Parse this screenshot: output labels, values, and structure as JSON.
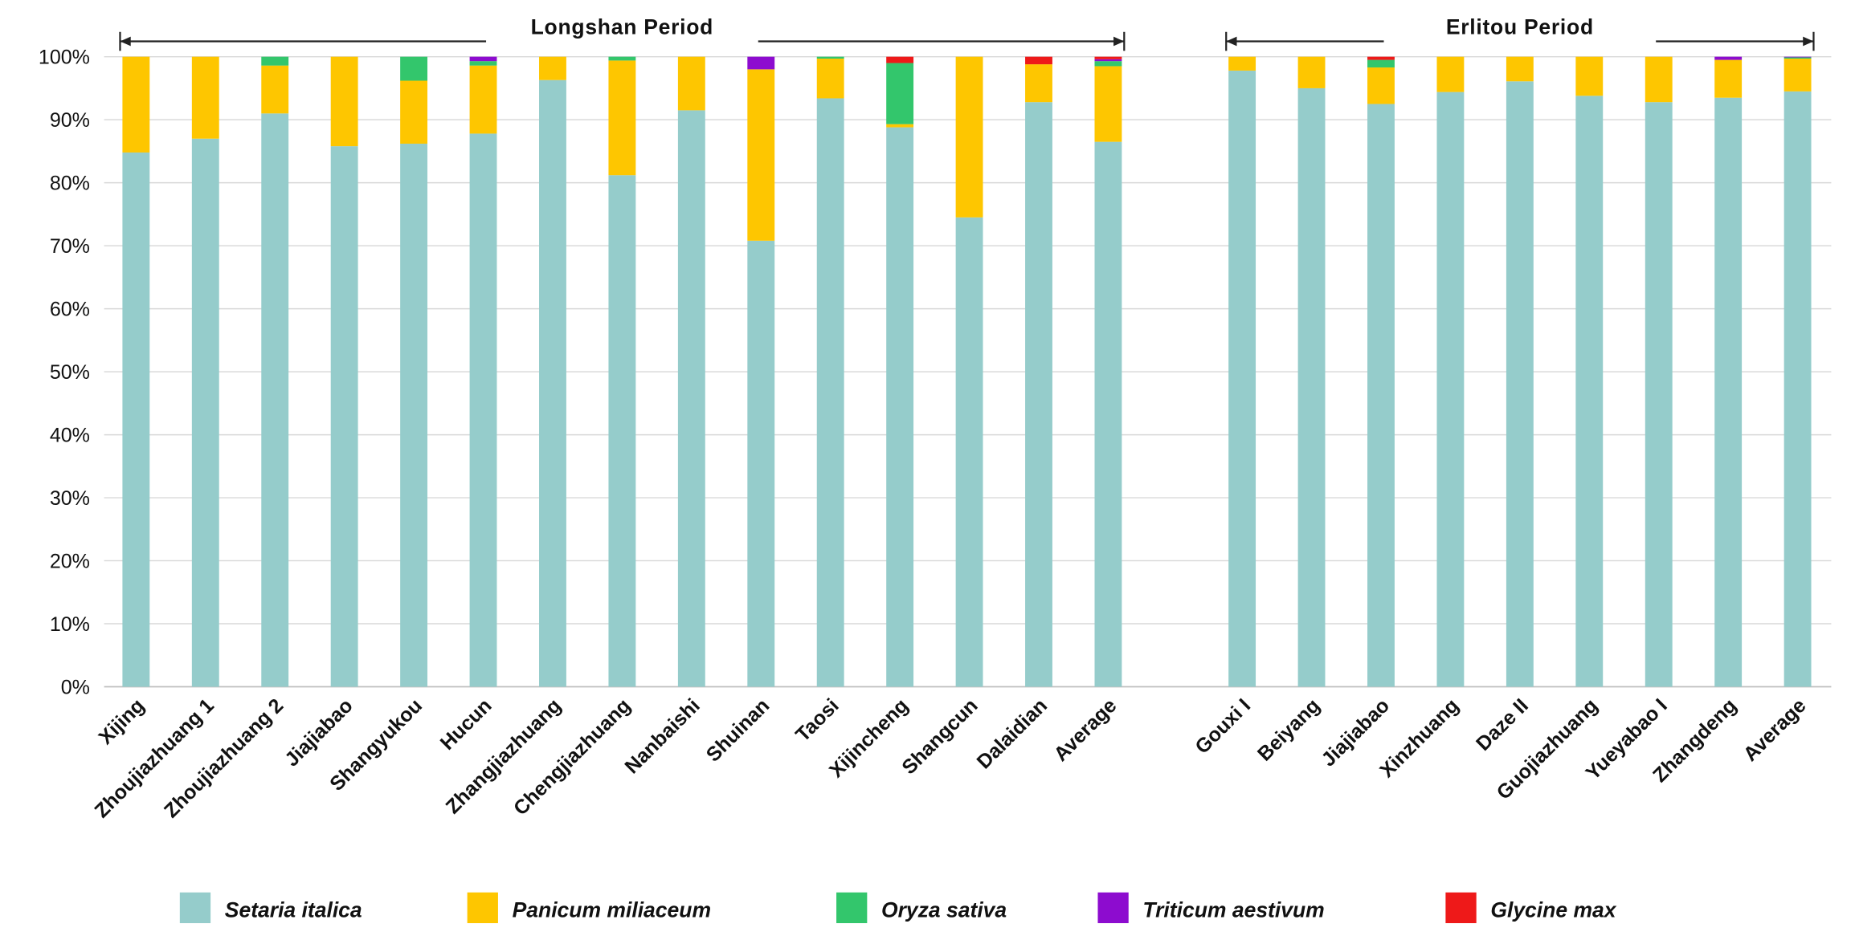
{
  "chart_data": {
    "type": "bar",
    "stacked": true,
    "title": "",
    "xlabel": "",
    "ylabel": "",
    "ylim": [
      0,
      100
    ],
    "y_ticks": [
      "0%",
      "10%",
      "20%",
      "30%",
      "40%",
      "50%",
      "60%",
      "70%",
      "80%",
      "90%",
      "100%"
    ],
    "grid": true,
    "legend_position": "bottom",
    "colors": {
      "setaria": "#95cccb",
      "panicum": "#fec600",
      "oryza": "#33c66c",
      "triticum": "#8d0ccf",
      "glycine": "#ee1919"
    },
    "legend": [
      {
        "key": "setaria",
        "label": "Setaria italica"
      },
      {
        "key": "panicum",
        "label": "Panicum miliaceum"
      },
      {
        "key": "oryza",
        "label": "Oryza sativa"
      },
      {
        "key": "triticum",
        "label": "Triticum aestivum"
      },
      {
        "key": "glycine",
        "label": "Glycine max"
      }
    ],
    "periods": [
      {
        "name": "Longshan Period",
        "categories": [
          "Xijing",
          "Zhoujiazhuang 1",
          "Zhoujiazhuang 2",
          "Jiajiabao",
          "Shangyukou",
          "Hucun",
          "Zhangjiazhuang",
          "Chengjiazhuang",
          "Nanbaishi",
          "Shuinan",
          "Taosi",
          "Xijincheng",
          "Shangcun",
          "Dalaidian",
          "Average"
        ],
        "series": {
          "setaria": [
            84.8,
            87.0,
            91.0,
            85.8,
            86.2,
            87.8,
            96.3,
            81.2,
            91.5,
            70.8,
            93.4,
            88.8,
            74.5,
            92.8,
            86.5
          ],
          "panicum": [
            15.2,
            13.0,
            7.6,
            14.2,
            10.0,
            10.8,
            3.7,
            18.2,
            8.5,
            27.2,
            6.3,
            0.5,
            25.5,
            6.0,
            12.0
          ],
          "oryza": [
            0,
            0,
            1.4,
            0,
            3.8,
            0.7,
            0,
            0.6,
            0,
            0,
            0.3,
            9.7,
            0,
            0,
            0.8
          ],
          "triticum": [
            0,
            0,
            0,
            0,
            0,
            0.7,
            0,
            0,
            0,
            2.0,
            0,
            0,
            0,
            0,
            0.3
          ],
          "glycine": [
            0,
            0,
            0,
            0,
            0,
            0,
            0,
            0,
            0,
            0,
            0,
            1.0,
            0,
            1.2,
            0.4
          ]
        }
      },
      {
        "name": "Erlitou Period",
        "categories": [
          "Gouxi I",
          "Beiyang",
          "Jiajiabao",
          "Xinzhuang",
          "Daze II",
          "Guojiazhuang",
          "Yueyabao I",
          "Zhangdeng",
          "Average"
        ],
        "series": {
          "setaria": [
            97.8,
            95.0,
            92.5,
            94.4,
            96.1,
            93.8,
            92.8,
            93.5,
            94.5
          ],
          "panicum": [
            2.2,
            5.0,
            5.8,
            5.6,
            3.9,
            6.2,
            7.2,
            6.0,
            5.2
          ],
          "oryza": [
            0,
            0,
            1.2,
            0,
            0,
            0,
            0,
            0,
            0.2
          ],
          "triticum": [
            0,
            0,
            0,
            0,
            0,
            0,
            0,
            0.5,
            0.1
          ],
          "glycine": [
            0,
            0,
            0.5,
            0,
            0,
            0,
            0,
            0,
            0
          ]
        }
      }
    ]
  }
}
